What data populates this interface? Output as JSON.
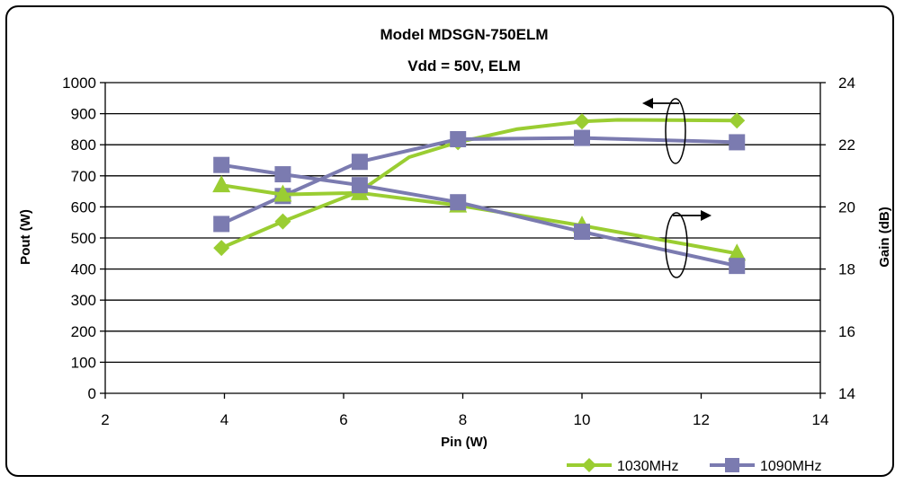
{
  "chart_data": {
    "type": "line",
    "title": "Model MDSGN-750ELM",
    "subtitle": "Vdd = 50V, ELM",
    "xlabel": "Pin (W)",
    "ylabel": "Pout (W)",
    "y2label": "Gain (dB)",
    "xlim": [
      2,
      14
    ],
    "ylim": [
      0,
      1000
    ],
    "y2lim": [
      14,
      24
    ],
    "x_ticks": [
      "2",
      "4",
      "6",
      "8",
      "10",
      "12",
      "14"
    ],
    "y_ticks": [
      "0",
      "100",
      "200",
      "300",
      "400",
      "500",
      "600",
      "700",
      "800",
      "900",
      "1000"
    ],
    "y2_ticks": [
      "14",
      "16",
      "18",
      "20",
      "22",
      "24"
    ],
    "grid": true,
    "legend_position": "bottom-right",
    "series": [
      {
        "name": "1030MHz",
        "metric": "Pout",
        "axis": "left",
        "color": "#9acd32",
        "marker": "diamond",
        "x": [
          3.95,
          4.98,
          6.27,
          7.92,
          10.0,
          12.6
        ],
        "y": [
          468,
          553,
          650,
          808,
          875,
          878
        ],
        "curve_x": [
          3.95,
          4.98,
          6.27,
          7.1,
          7.92,
          8.9,
          10.0,
          10.6,
          12.6
        ],
        "curve_y": [
          468,
          553,
          650,
          760,
          808,
          850,
          875,
          880,
          878
        ]
      },
      {
        "name": "1090MHz",
        "metric": "Pout",
        "axis": "left",
        "color": "#7b7bb0",
        "marker": "square",
        "x": [
          3.95,
          4.98,
          6.27,
          7.92,
          10.0,
          12.6
        ],
        "y": [
          545,
          635,
          745,
          818,
          822,
          808
        ],
        "curve_x": [
          3.95,
          4.98,
          6.27,
          7.92,
          10.0,
          12.6
        ],
        "curve_y": [
          545,
          635,
          745,
          818,
          822,
          808
        ]
      },
      {
        "name": "1030MHz",
        "metric": "Gain",
        "axis": "right",
        "color": "#9acd32",
        "marker": "triangle",
        "x": [
          3.95,
          4.98,
          6.27,
          7.92,
          10.0,
          12.6
        ],
        "y": [
          20.7,
          20.4,
          20.45,
          20.05,
          19.4,
          18.5
        ],
        "curve_x": [
          3.95,
          4.98,
          6.27,
          7.92,
          10.0,
          12.6
        ],
        "curve_y": [
          20.7,
          20.4,
          20.45,
          20.05,
          19.4,
          18.5
        ]
      },
      {
        "name": "1090MHz",
        "metric": "Gain",
        "axis": "right",
        "color": "#7b7bb0",
        "marker": "square",
        "x": [
          3.95,
          4.98,
          6.27,
          7.92,
          10.0,
          12.6
        ],
        "y": [
          21.35,
          21.05,
          20.7,
          20.15,
          19.2,
          18.1
        ],
        "curve_x": [
          3.95,
          4.98,
          6.27,
          7.92,
          10.0,
          12.6
        ],
        "curve_y": [
          21.35,
          21.05,
          20.7,
          20.15,
          19.2,
          18.1
        ]
      }
    ],
    "annotations": [
      {
        "type": "arrow-left",
        "meaning": "Pout curves read on left axis"
      },
      {
        "type": "arrow-right",
        "meaning": "Gain curves read on right axis"
      }
    ],
    "legend": [
      {
        "name": "1030MHz",
        "color": "#9acd32",
        "marker": "diamond"
      },
      {
        "name": "1090MHz",
        "color": "#7b7bb0",
        "marker": "square"
      }
    ]
  }
}
